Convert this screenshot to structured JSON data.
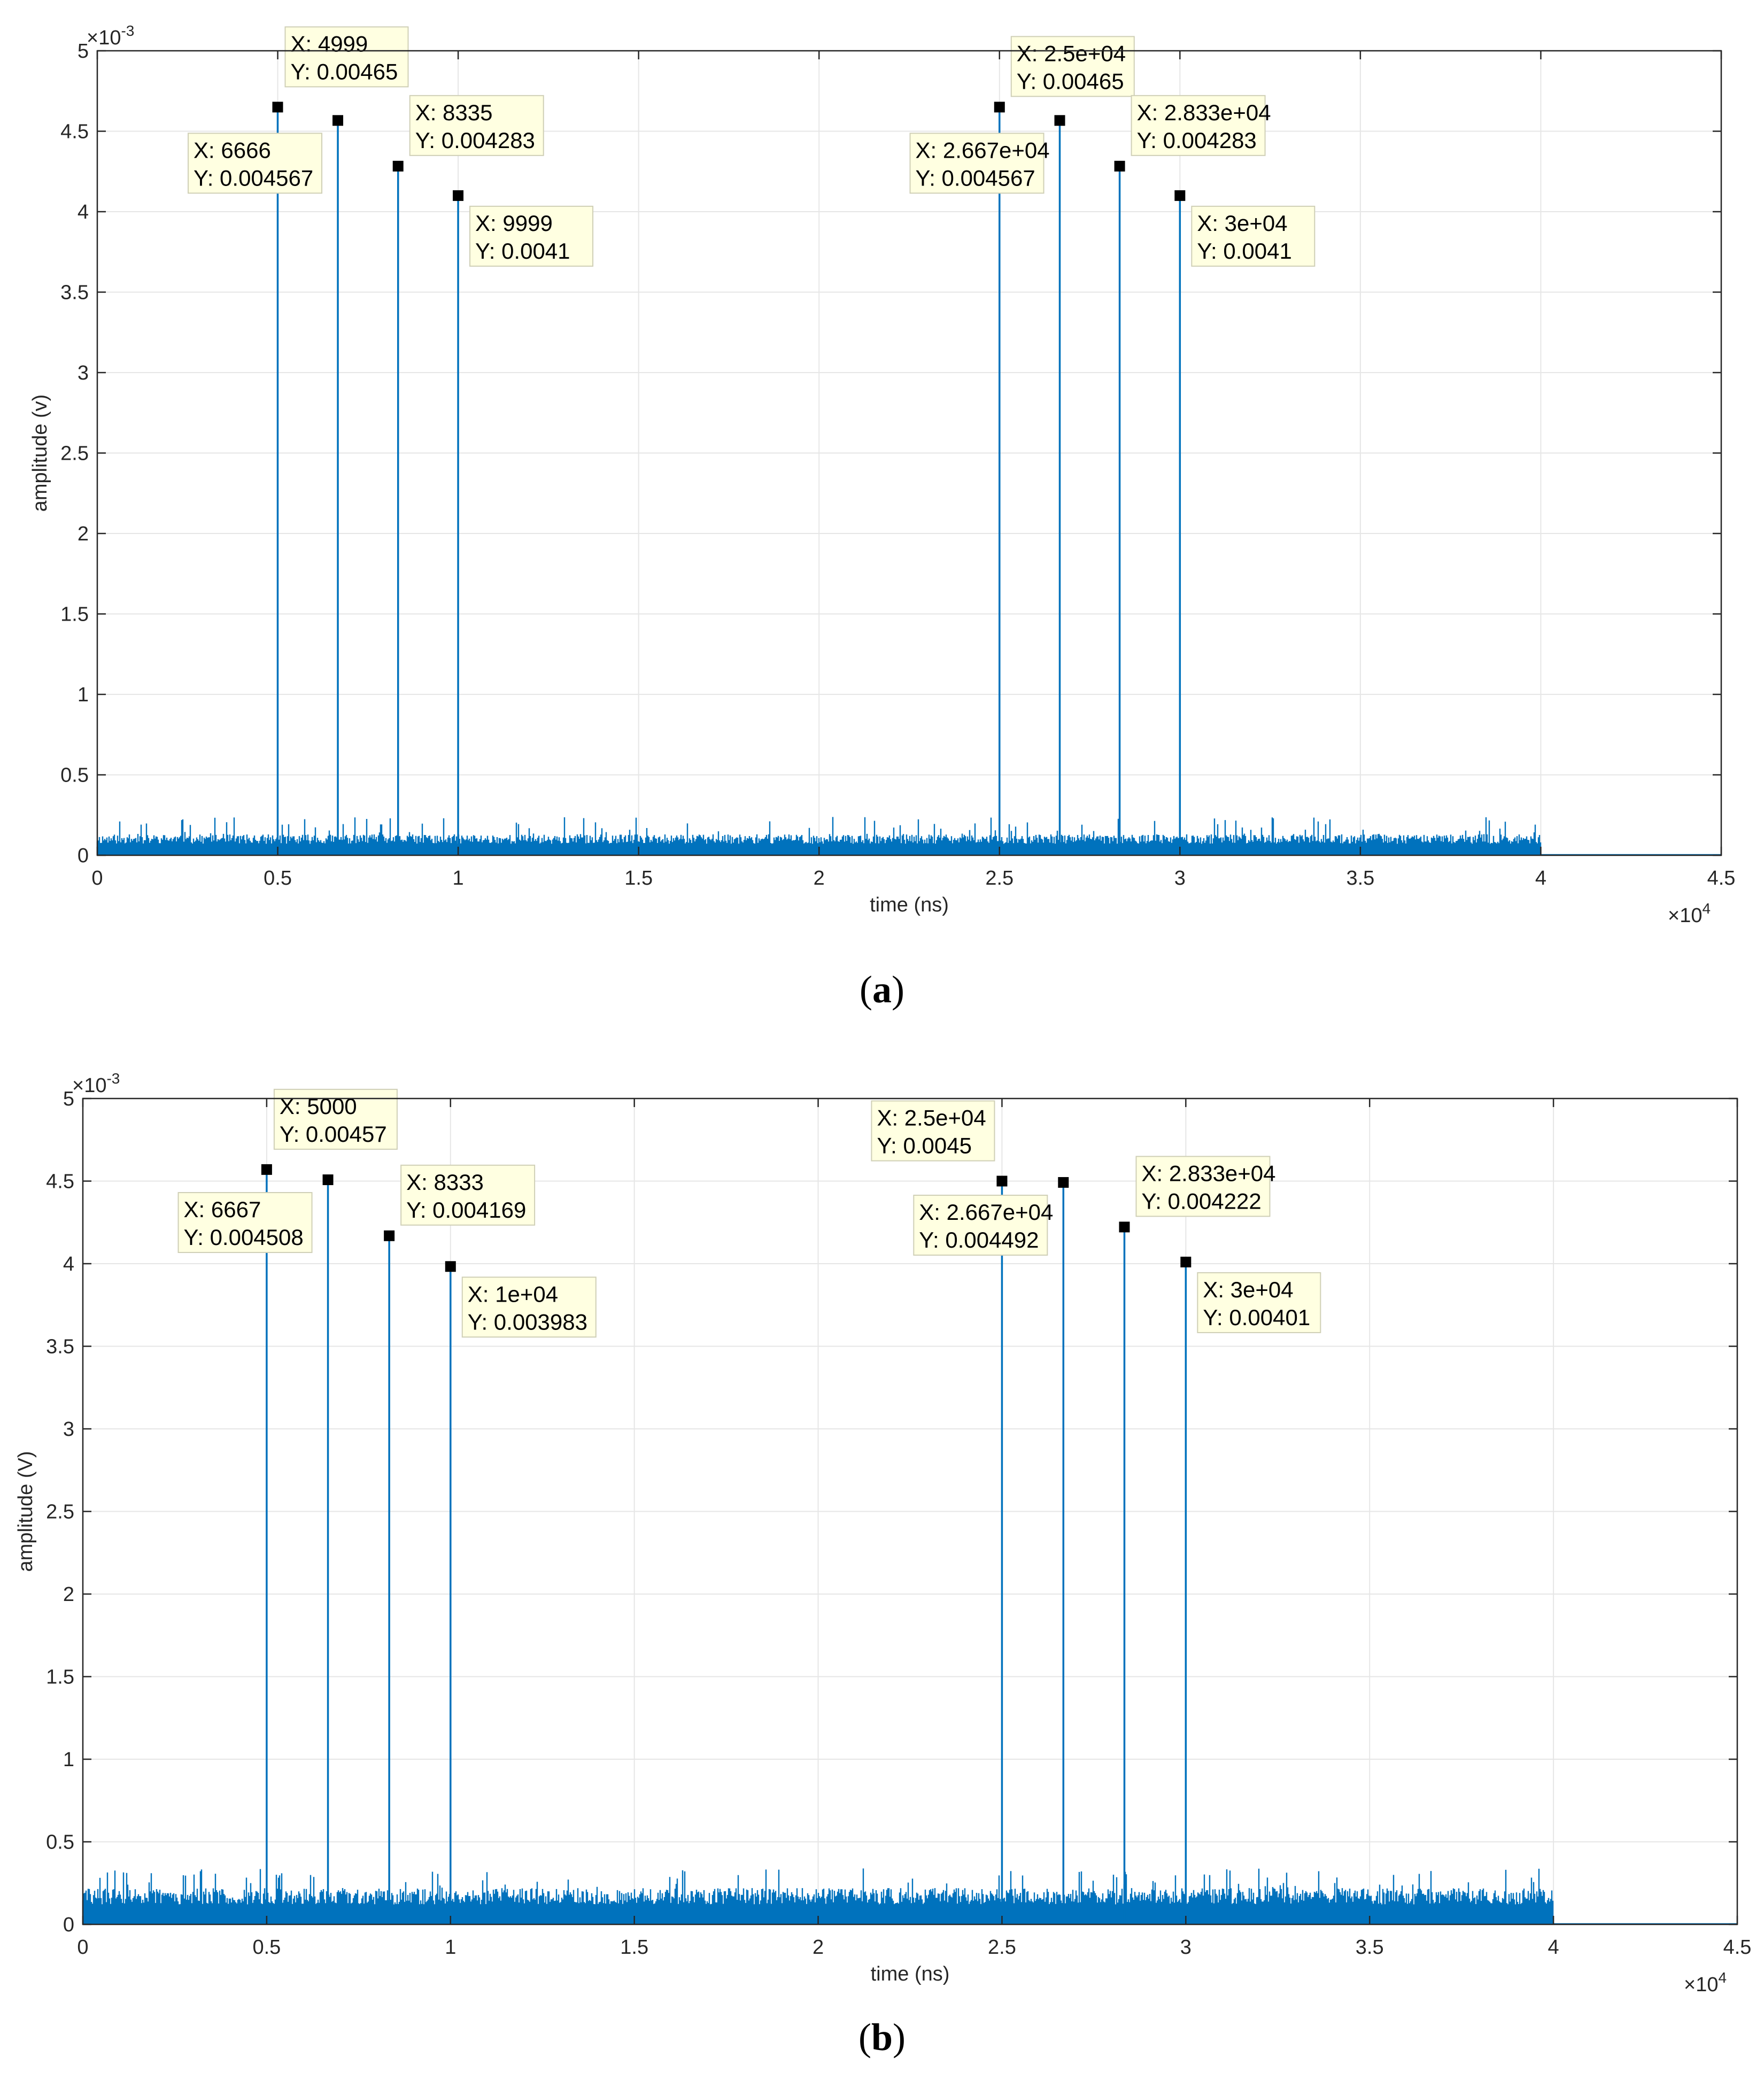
{
  "chart_data": [
    {
      "id": "a",
      "type": "line",
      "caption": "a",
      "xlabel": "time (ns)",
      "ylabel": "amplitude (v)",
      "x_exponent_label": "×10",
      "x_exponent": "4",
      "y_exponent_label": "×10",
      "y_exponent": "-3",
      "xlim": [
        0,
        45000
      ],
      "ylim": [
        0,
        0.005
      ],
      "xticks": [
        0,
        5000,
        10000,
        15000,
        20000,
        25000,
        30000,
        35000,
        40000,
        45000
      ],
      "xtick_labels": [
        "0",
        "0.5",
        "1",
        "1.5",
        "2",
        "2.5",
        "3",
        "3.5",
        "4",
        "4.5"
      ],
      "yticks": [
        0,
        0.0005,
        0.001,
        0.0015,
        0.002,
        0.0025,
        0.003,
        0.0035,
        0.004,
        0.0045,
        0.005
      ],
      "ytick_labels": [
        "0",
        "0.5",
        "1",
        "1.5",
        "2",
        "2.5",
        "3",
        "3.5",
        "4",
        "4.5",
        "5"
      ],
      "grid": true,
      "line_color": "#0072bd",
      "noise": {
        "x_end": 40000,
        "level": 0.00013,
        "max_spike": 0.00024
      },
      "peaks": [
        {
          "x": 4999,
          "y": 0.00465,
          "label_x": "X: 4999",
          "label_y": "Y: 0.00465",
          "tip": "above"
        },
        {
          "x": 6666,
          "y": 0.004567,
          "label_x": "X: 6666",
          "label_y": "Y: 0.004567",
          "tip": "below-left"
        },
        {
          "x": 8335,
          "y": 0.004283,
          "label_x": "X: 8335",
          "label_y": "Y: 0.004283",
          "tip": "above-right"
        },
        {
          "x": 9999,
          "y": 0.0041,
          "label_x": "X: 9999",
          "label_y": "Y: 0.0041",
          "tip": "right-low"
        },
        {
          "x": 25000,
          "y": 0.00465,
          "label_x": "X: 2.5e+04",
          "label_y": "Y: 0.00465",
          "tip": "above-right"
        },
        {
          "x": 26670,
          "y": 0.004567,
          "label_x": "X: 2.667e+04",
          "label_y": "Y: 0.004567",
          "tip": "below-left"
        },
        {
          "x": 28330,
          "y": 0.004283,
          "label_x": "X: 2.833e+04",
          "label_y": "Y: 0.004283",
          "tip": "above-right"
        },
        {
          "x": 30000,
          "y": 0.0041,
          "label_x": "X: 3e+04",
          "label_y": "Y: 0.0041",
          "tip": "right-low"
        }
      ]
    },
    {
      "id": "b",
      "type": "line",
      "caption": "b",
      "xlabel": "time (ns)",
      "ylabel": "amplitude (V)",
      "x_exponent_label": "×10",
      "x_exponent": "4",
      "y_exponent_label": "×10",
      "y_exponent": "-3",
      "xlim": [
        0,
        45000
      ],
      "ylim": [
        0,
        0.005
      ],
      "xticks": [
        0,
        5000,
        10000,
        15000,
        20000,
        25000,
        30000,
        35000,
        40000,
        45000
      ],
      "xtick_labels": [
        "0",
        "0.5",
        "1",
        "1.5",
        "2",
        "2.5",
        "3",
        "3.5",
        "4",
        "4.5"
      ],
      "yticks": [
        0,
        0.0005,
        0.001,
        0.0015,
        0.002,
        0.0025,
        0.003,
        0.0035,
        0.004,
        0.0045,
        0.005
      ],
      "ytick_labels": [
        "0",
        "0.5",
        "1",
        "1.5",
        "2",
        "2.5",
        "3",
        "3.5",
        "4",
        "4.5",
        "5"
      ],
      "grid": true,
      "line_color": "#0072bd",
      "noise": {
        "x_end": 40000,
        "level": 0.00022,
        "max_spike": 0.00034
      },
      "peaks": [
        {
          "x": 5000,
          "y": 0.00457,
          "label_x": "X: 5000",
          "label_y": "Y: 0.00457",
          "tip": "above"
        },
        {
          "x": 6667,
          "y": 0.004508,
          "label_x": "X: 6667",
          "label_y": "Y: 0.004508",
          "tip": "below-left"
        },
        {
          "x": 8333,
          "y": 0.004169,
          "label_x": "X: 8333",
          "label_y": "Y: 0.004169",
          "tip": "above-right"
        },
        {
          "x": 10000,
          "y": 0.003983,
          "label_x": "X: 1e+04",
          "label_y": "Y: 0.003983",
          "tip": "right-low"
        },
        {
          "x": 25000,
          "y": 0.0045,
          "label_x": "X: 2.5e+04",
          "label_y": "Y: 0.0045",
          "tip": "above-left"
        },
        {
          "x": 26670,
          "y": 0.004492,
          "label_x": "X: 2.667e+04",
          "label_y": "Y: 0.004492",
          "tip": "below-left"
        },
        {
          "x": 28330,
          "y": 0.004222,
          "label_x": "X: 2.833e+04",
          "label_y": "Y: 0.004222",
          "tip": "above-right"
        },
        {
          "x": 30000,
          "y": 0.00401,
          "label_x": "X: 3e+04",
          "label_y": "Y: 0.00401",
          "tip": "right-low"
        }
      ]
    }
  ]
}
